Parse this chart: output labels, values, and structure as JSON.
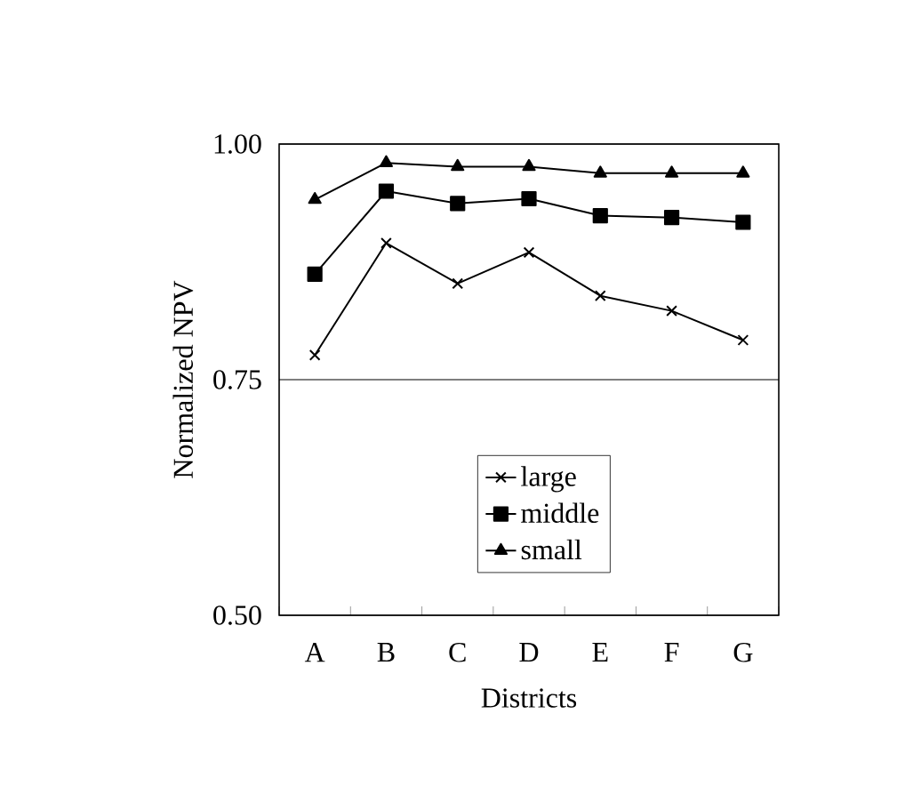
{
  "chart_data": {
    "type": "line",
    "xlabel": "Districts",
    "ylabel": "Normalized NPV",
    "categories": [
      "A",
      "B",
      "C",
      "D",
      "E",
      "F",
      "G"
    ],
    "series": [
      {
        "name": "large",
        "color": "#000000",
        "marker": "cross",
        "values": [
          0.776,
          0.895,
          0.852,
          0.885,
          0.839,
          0.823,
          0.792
        ]
      },
      {
        "name": "middle",
        "color": "#000000",
        "marker": "square",
        "values": [
          0.862,
          0.95,
          0.937,
          0.942,
          0.924,
          0.922,
          0.917
        ]
      },
      {
        "name": "small",
        "color": "#000000",
        "marker": "triangle",
        "values": [
          0.941,
          0.98,
          0.976,
          0.976,
          0.969,
          0.969,
          0.969
        ]
      }
    ],
    "ylim": [
      0.5,
      1.0
    ],
    "yticks": [
      {
        "value": 0.5,
        "label": "0.50"
      },
      {
        "value": 0.75,
        "label": "0.75"
      },
      {
        "value": 1.0,
        "label": "1.00"
      }
    ],
    "grid": "y",
    "legend": "bottom",
    "line_style": "solid"
  }
}
